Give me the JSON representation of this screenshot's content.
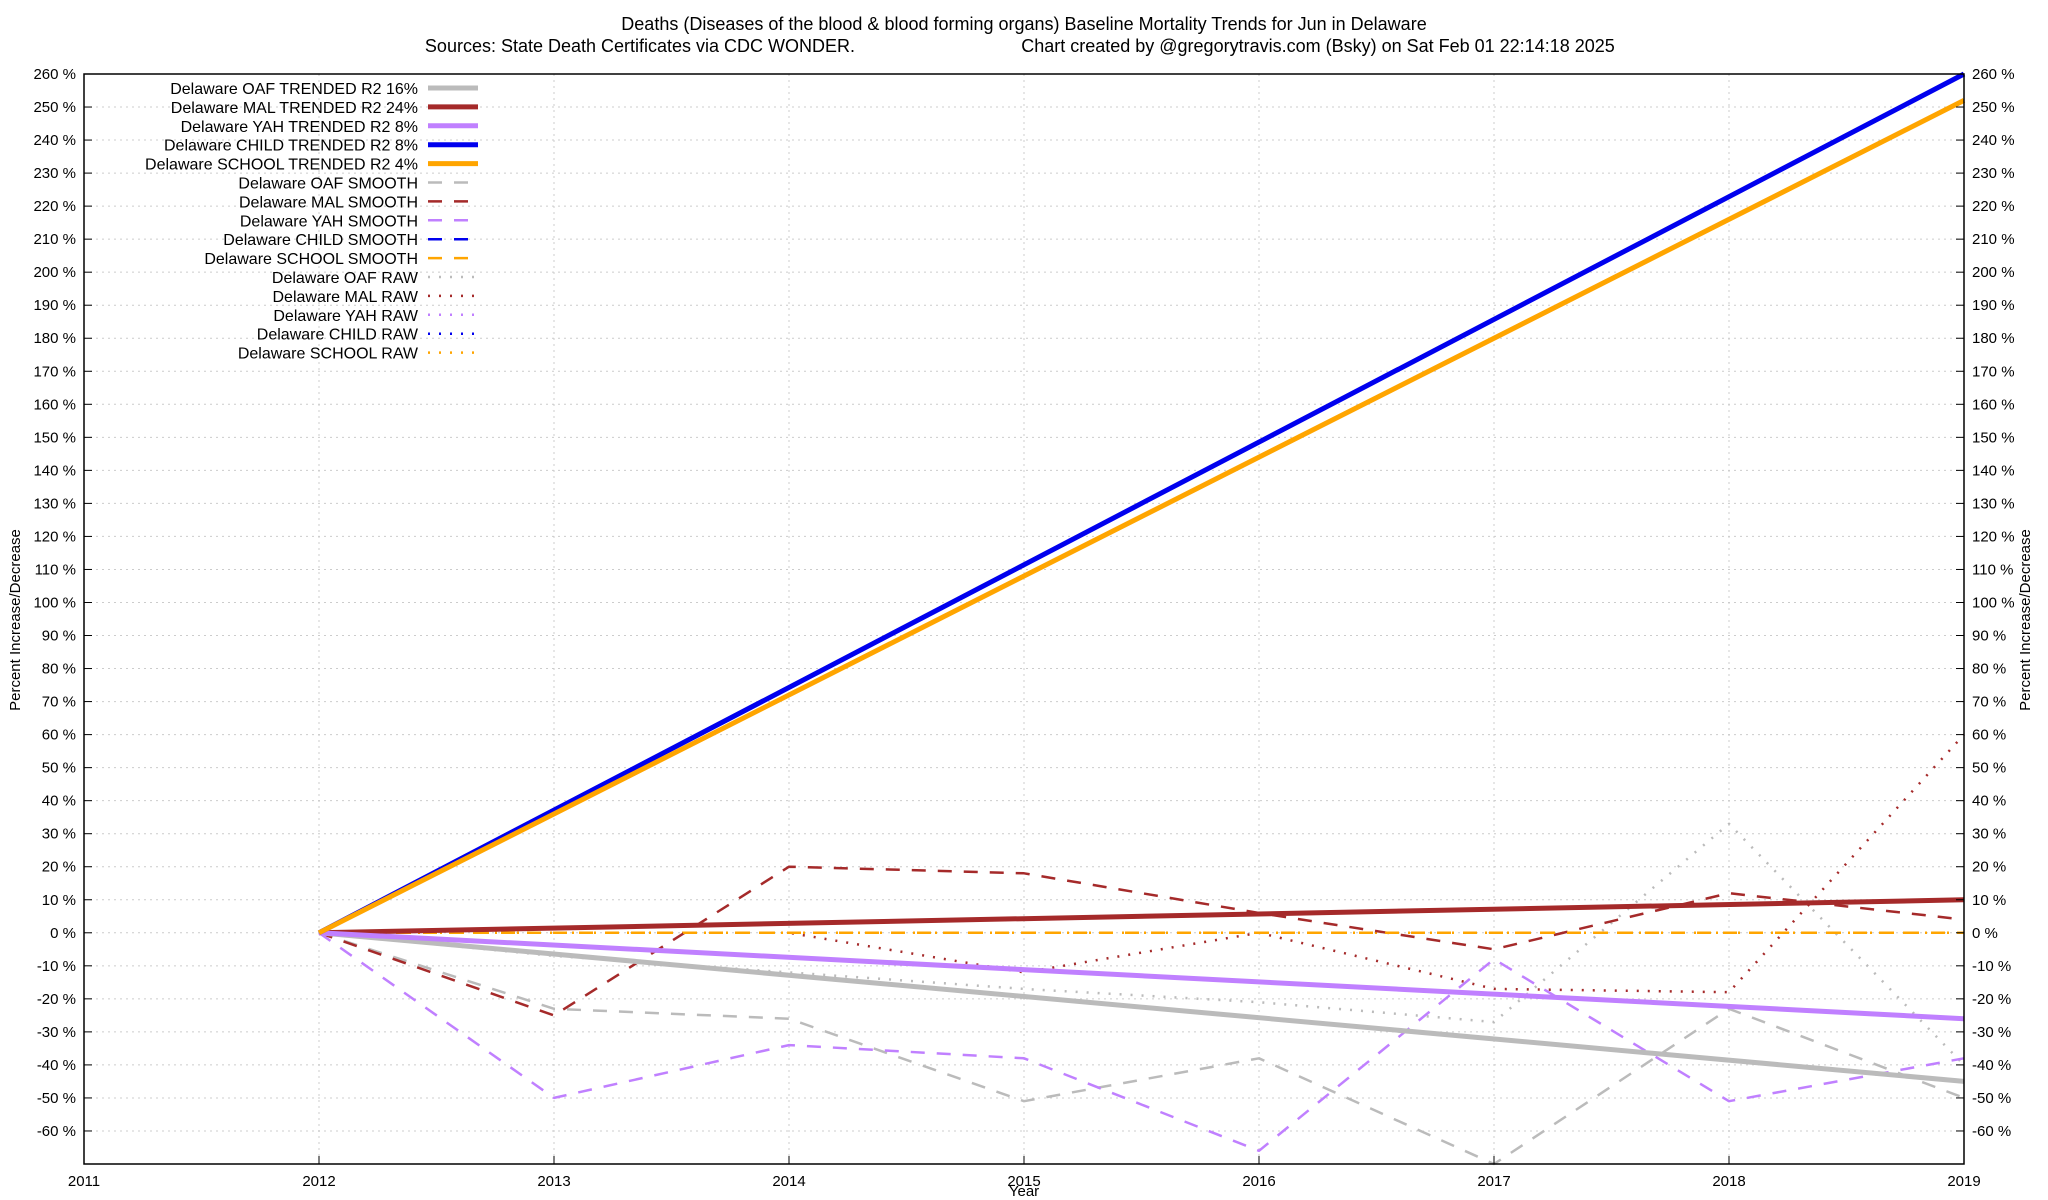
{
  "chart_data": {
    "type": "line",
    "title": "Deaths (Diseases of the blood & blood forming organs)  Baseline Mortality Trends for Jun in Delaware",
    "subtitle_left": "Sources: State Death Certificates via CDC WONDER.",
    "subtitle_right": "Chart created by @gregorytravis.com (Bsky) on Sat Feb 01 22:14:18 2025",
    "xlabel": "Year",
    "ylabel": "Percent Increase/Decrease",
    "y2label": "Percent Increase/Decrease",
    "xlim": [
      2011,
      2019
    ],
    "ylim": [
      -70,
      260
    ],
    "x_ticks": [
      "2011",
      "2012",
      "2013",
      "2014",
      "2015",
      "2016",
      "2017",
      "2018",
      "2019"
    ],
    "y_ticks": [
      "260 %",
      "250 %",
      "240 %",
      "230 %",
      "220 %",
      "210 %",
      "200 %",
      "190 %",
      "180 %",
      "170 %",
      "160 %",
      "150 %",
      "140 %",
      "130 %",
      "120 %",
      "110 %",
      "100 %",
      "90 %",
      "80 %",
      "70 %",
      "60 %",
      "50 %",
      "40 %",
      "30 %",
      "20 %",
      "10 %",
      "0 %",
      "-10 %",
      "-20 %",
      "-30 %",
      "-40 %",
      "-50 %",
      "-60 %"
    ],
    "y_tick_values": [
      260,
      250,
      240,
      230,
      220,
      210,
      200,
      190,
      180,
      170,
      160,
      150,
      140,
      130,
      120,
      110,
      100,
      90,
      80,
      70,
      60,
      50,
      40,
      30,
      20,
      10,
      0,
      -10,
      -20,
      -30,
      -40,
      -50,
      -60
    ],
    "grid": true,
    "legend_position": "top-left",
    "series": [
      {
        "name": "Delaware OAF TRENDED R2  16%",
        "style": "trend",
        "color": "#bbbbbb",
        "x": [
          2012,
          2019
        ],
        "y": [
          0,
          -45
        ]
      },
      {
        "name": "Delaware MAL TRENDED R2  24%",
        "style": "trend",
        "color": "#a52a2a",
        "x": [
          2012,
          2019
        ],
        "y": [
          0,
          10
        ]
      },
      {
        "name": "Delaware YAH TRENDED R2   8%",
        "style": "trend",
        "color": "#c080ff",
        "x": [
          2012,
          2019
        ],
        "y": [
          0,
          -26
        ]
      },
      {
        "name": "Delaware CHILD TRENDED R2   8%",
        "style": "trend",
        "color": "#0000ee",
        "x": [
          2012,
          2019
        ],
        "y": [
          0,
          260
        ]
      },
      {
        "name": "Delaware SCHOOL TRENDED R2   4%",
        "style": "trend",
        "color": "#ffa500",
        "x": [
          2012,
          2019
        ],
        "y": [
          0,
          252
        ]
      },
      {
        "name": "Delaware OAF SMOOTH",
        "style": "smooth",
        "color": "#bbbbbb",
        "x": [
          2012,
          2013,
          2014,
          2015,
          2016,
          2017,
          2018,
          2019
        ],
        "y": [
          0,
          -23,
          -26,
          -51,
          -38,
          -70,
          -23,
          -50
        ]
      },
      {
        "name": "Delaware MAL SMOOTH",
        "style": "smooth",
        "color": "#a52a2a",
        "x": [
          2012,
          2013,
          2014,
          2015,
          2016,
          2017,
          2018,
          2019
        ],
        "y": [
          0,
          -25,
          20,
          18,
          6,
          -5,
          12,
          4
        ]
      },
      {
        "name": "Delaware YAH SMOOTH",
        "style": "smooth",
        "color": "#c080ff",
        "x": [
          2012,
          2013,
          2014,
          2015,
          2016,
          2017,
          2018,
          2019
        ],
        "y": [
          0,
          -50,
          -34,
          -38,
          -66,
          -8,
          -51,
          -38
        ]
      },
      {
        "name": "Delaware CHILD SMOOTH",
        "style": "smooth",
        "color": "#0000ee",
        "x": [
          2012,
          2013,
          2014,
          2015,
          2016,
          2017,
          2018,
          2019
        ],
        "y": [
          0,
          0,
          0,
          0,
          0,
          0,
          0,
          0
        ]
      },
      {
        "name": "Delaware SCHOOL SMOOTH",
        "style": "smooth",
        "color": "#ffa500",
        "x": [
          2012,
          2013,
          2014,
          2015,
          2016,
          2017,
          2018,
          2019
        ],
        "y": [
          0,
          0,
          0,
          0,
          0,
          0,
          0,
          0
        ]
      },
      {
        "name": "Delaware OAF RAW",
        "style": "raw",
        "color": "#bbbbbb",
        "x": [
          2012,
          2013,
          2014,
          2015,
          2016,
          2017,
          2018,
          2019
        ],
        "y": [
          0,
          -7,
          -12,
          -17,
          -21,
          -27,
          33,
          -40
        ]
      },
      {
        "name": "Delaware MAL RAW",
        "style": "raw",
        "color": "#a52a2a",
        "x": [
          2012,
          2013,
          2014,
          2015,
          2016,
          2017,
          2018,
          2019
        ],
        "y": [
          0,
          0,
          0,
          -12,
          0,
          -17,
          -18,
          60
        ]
      },
      {
        "name": "Delaware YAH RAW",
        "style": "raw",
        "color": "#c080ff",
        "x": [
          2012,
          2013,
          2014,
          2015,
          2016,
          2017,
          2018,
          2019
        ],
        "y": [
          0,
          0,
          0,
          0,
          0,
          0,
          0,
          0
        ]
      },
      {
        "name": "Delaware CHILD RAW",
        "style": "raw",
        "color": "#0000ee",
        "x": [
          2012,
          2013,
          2014,
          2015,
          2016,
          2017,
          2018,
          2019
        ],
        "y": [
          0,
          0,
          0,
          0,
          0,
          0,
          0,
          0
        ]
      },
      {
        "name": "Delaware SCHOOL RAW",
        "style": "raw",
        "color": "#ffa500",
        "x": [
          2012,
          2013,
          2014,
          2015,
          2016,
          2017,
          2018,
          2019
        ],
        "y": [
          0,
          0,
          0,
          0,
          0,
          0,
          0,
          0
        ]
      }
    ]
  }
}
